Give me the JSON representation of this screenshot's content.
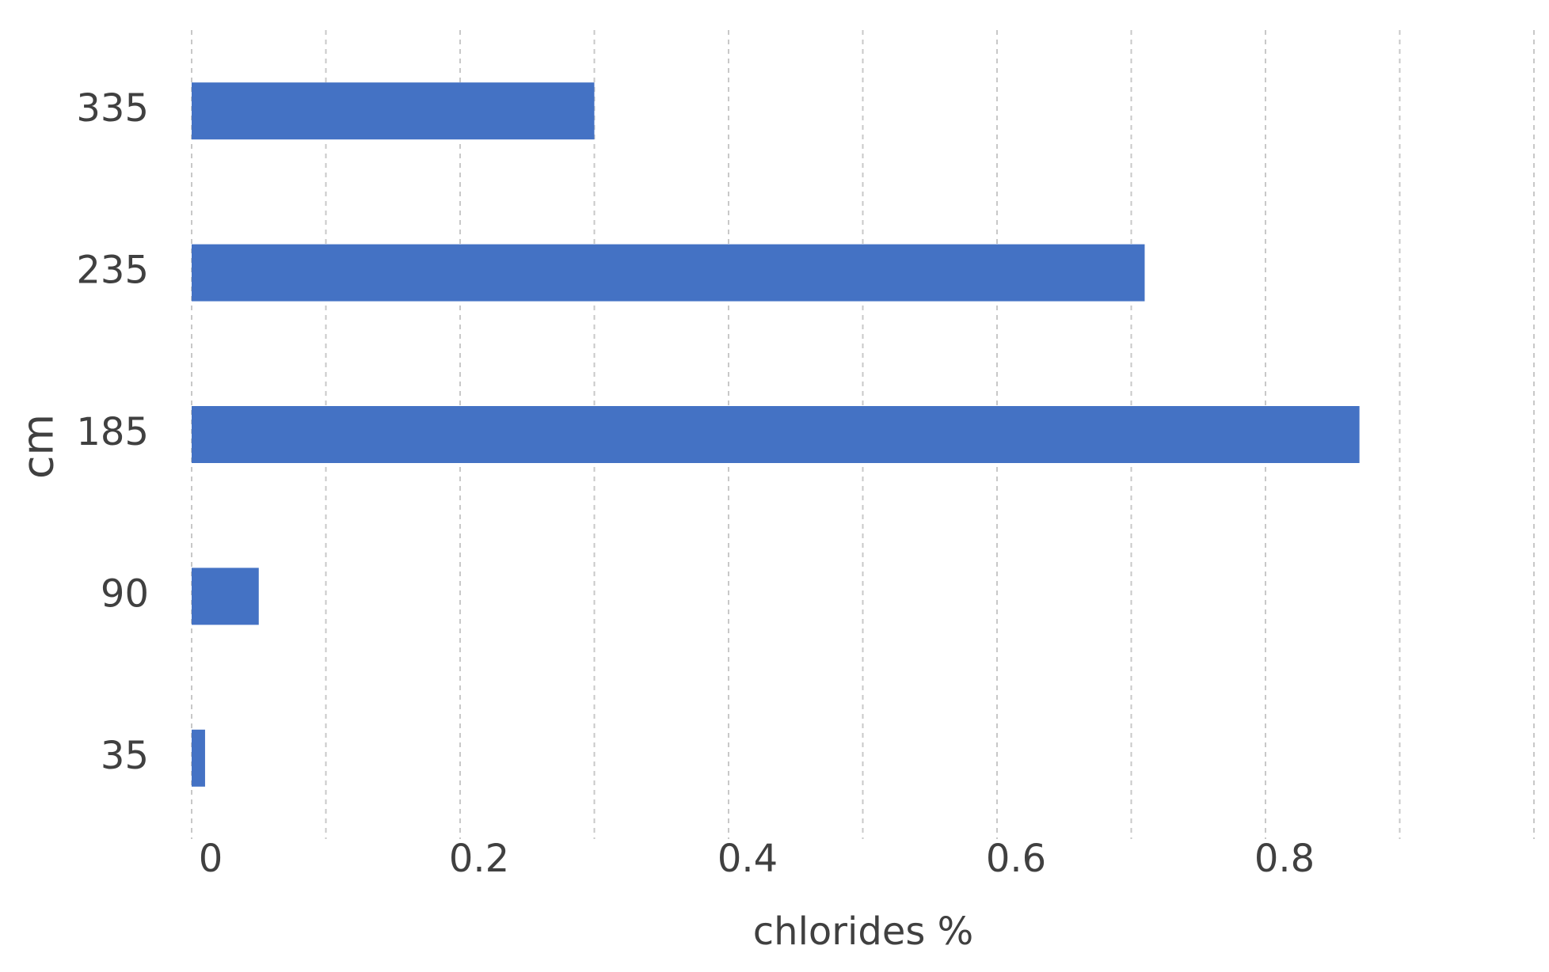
{
  "chart_data": {
    "type": "hbar",
    "x_label": "chlorides %",
    "y_label": "cm",
    "categories": [
      "35",
      "90",
      "185",
      "235",
      "335"
    ],
    "values": [
      0.01,
      0.05,
      0.87,
      0.71,
      0.3
    ],
    "color": "#4472c4",
    "xlim": [
      0,
      1.0
    ],
    "xticks": [
      0,
      0.2,
      0.4,
      0.6,
      0.8
    ],
    "grid_xticks": [
      0,
      0.1,
      0.2,
      0.3,
      0.4,
      0.5,
      0.6,
      0.7,
      0.8,
      0.9,
      1.0
    ],
    "grid": true
  }
}
